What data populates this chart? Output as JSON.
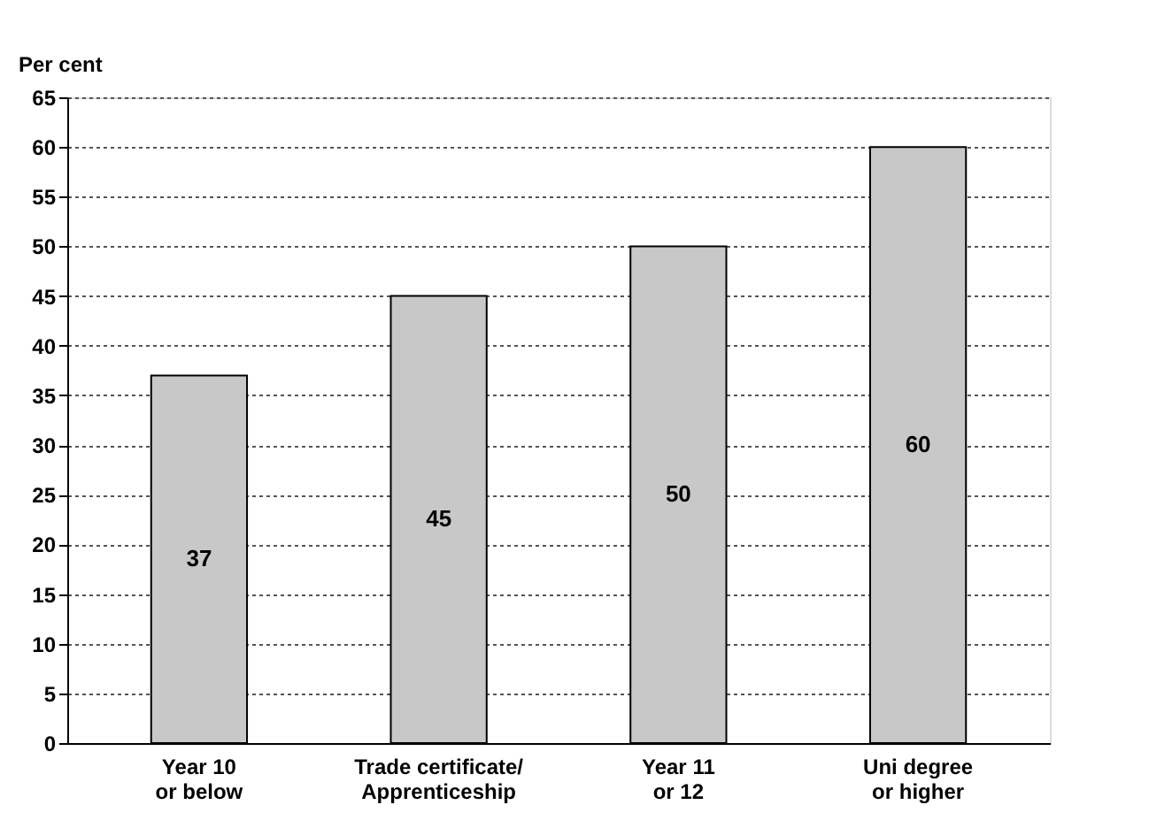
{
  "chart_data": {
    "type": "bar",
    "ylabel": "Per cent",
    "categories": [
      "Year 10\nor below",
      "Trade certificate/\nApprenticeship",
      "Year 11\nor 12",
      "Uni degree\nor higher"
    ],
    "values": [
      37,
      45,
      50,
      60
    ],
    "color": "#c8c8c8",
    "data_labels": true,
    "ylim": [
      0,
      65
    ],
    "yticks": [
      0,
      5,
      10,
      15,
      20,
      25,
      30,
      35,
      40,
      45,
      50,
      55,
      60,
      65
    ],
    "grid": "y"
  }
}
